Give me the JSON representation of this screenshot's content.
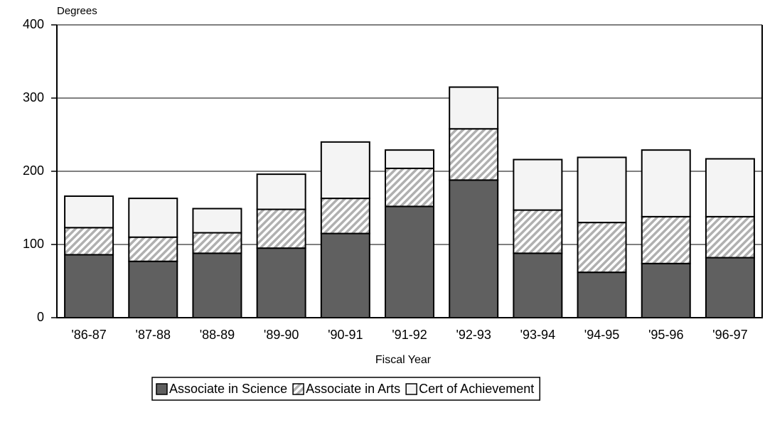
{
  "chart_data": {
    "type": "stacked_bar",
    "y_label": "Degrees",
    "x_label": "Fiscal Year",
    "categories": [
      "'86-87",
      "'87-88",
      "'88-89",
      "'89-90",
      "'90-91",
      "'91-92",
      "'92-93",
      "'93-94",
      "'94-95",
      "'95-96",
      "'96-97"
    ],
    "series": [
      {
        "name": "Associate in Science",
        "color": "#606060",
        "values": [
          86,
          77,
          88,
          95,
          115,
          152,
          188,
          88,
          62,
          74,
          82
        ]
      },
      {
        "name": "Associate in Arts",
        "color": "#b0b0b0",
        "pattern": "diagonal",
        "values": [
          37,
          33,
          28,
          53,
          48,
          52,
          70,
          59,
          68,
          64,
          56
        ]
      },
      {
        "name": "Cert of Achievement",
        "color": "#f4f4f4",
        "values": [
          43,
          53,
          33,
          48,
          77,
          25,
          57,
          69,
          89,
          91,
          79
        ]
      }
    ],
    "ylim": [
      0,
      400
    ],
    "yticks": [
      0,
      100,
      200,
      300,
      400
    ],
    "grid": true,
    "legend": "bottom"
  }
}
